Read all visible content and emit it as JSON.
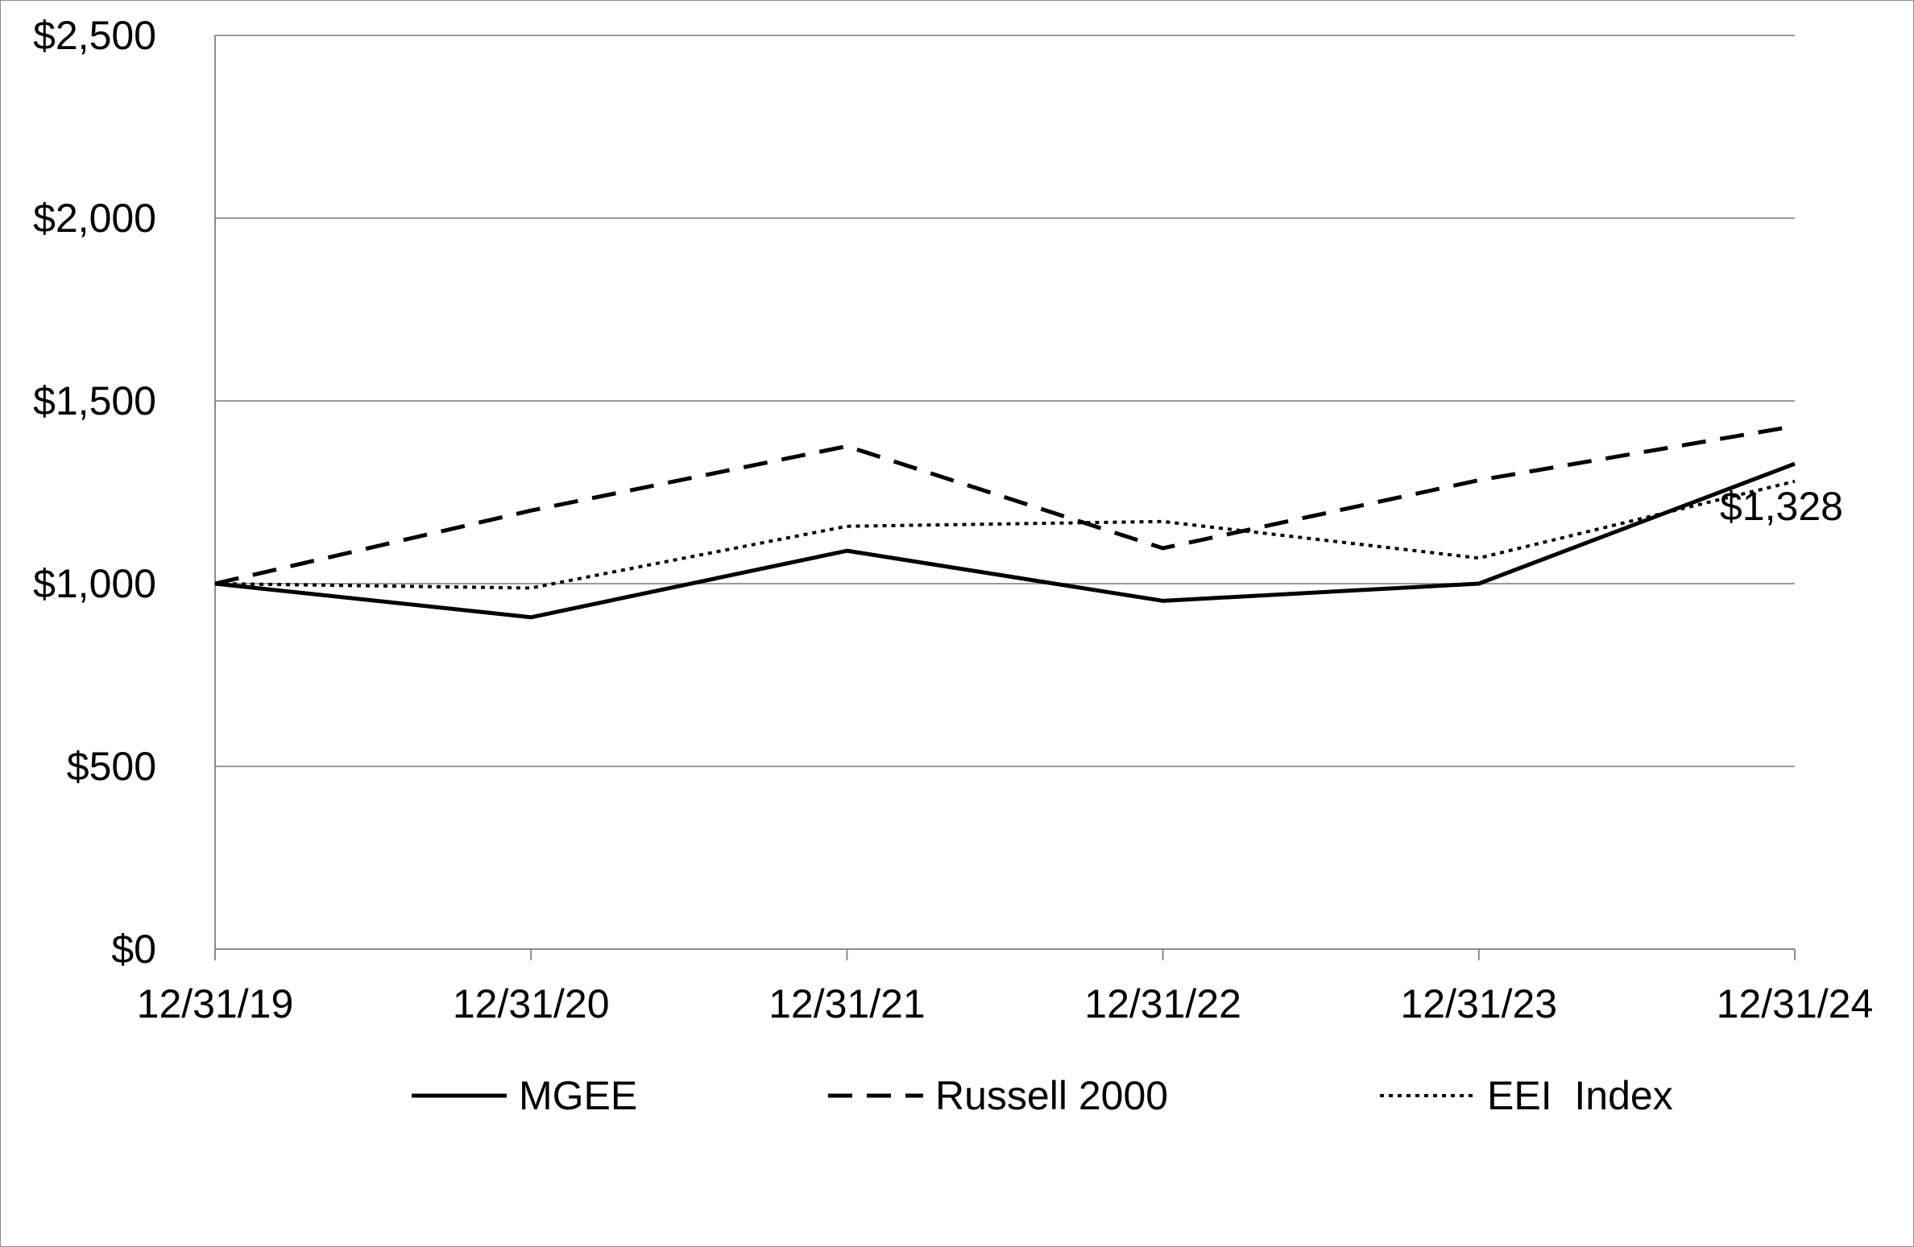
{
  "chart_data": {
    "type": "line",
    "title": "",
    "xlabel": "",
    "ylabel": "",
    "categories": [
      "12/31/19",
      "12/31/20",
      "12/31/21",
      "12/31/22",
      "12/31/23",
      "12/31/24"
    ],
    "ylim": [
      0,
      2500
    ],
    "yticks": [
      0,
      500,
      1000,
      1500,
      2000,
      2500
    ],
    "ytick_labels": [
      "$0",
      "$500",
      "$1,000",
      "$1,500",
      "$2,000",
      "$2,500"
    ],
    "grid": "horizontal",
    "legend_position": "bottom",
    "series": [
      {
        "name": "MGEE",
        "style": "solid",
        "color": "#000000",
        "values": [
          1000,
          908,
          1090,
          953,
          1000,
          1328
        ]
      },
      {
        "name": "Russell 2000",
        "style": "dashed",
        "color": "#000000",
        "values": [
          1000,
          1200,
          1376,
          1097,
          1283,
          1431
        ]
      },
      {
        "name": "EEI  Index",
        "style": "dotted",
        "color": "#000000",
        "values": [
          1000,
          988,
          1157,
          1170,
          1070,
          1280
        ]
      }
    ],
    "annotations": [
      {
        "series": "MGEE",
        "category": "12/31/24",
        "text": "$1,328"
      }
    ]
  }
}
